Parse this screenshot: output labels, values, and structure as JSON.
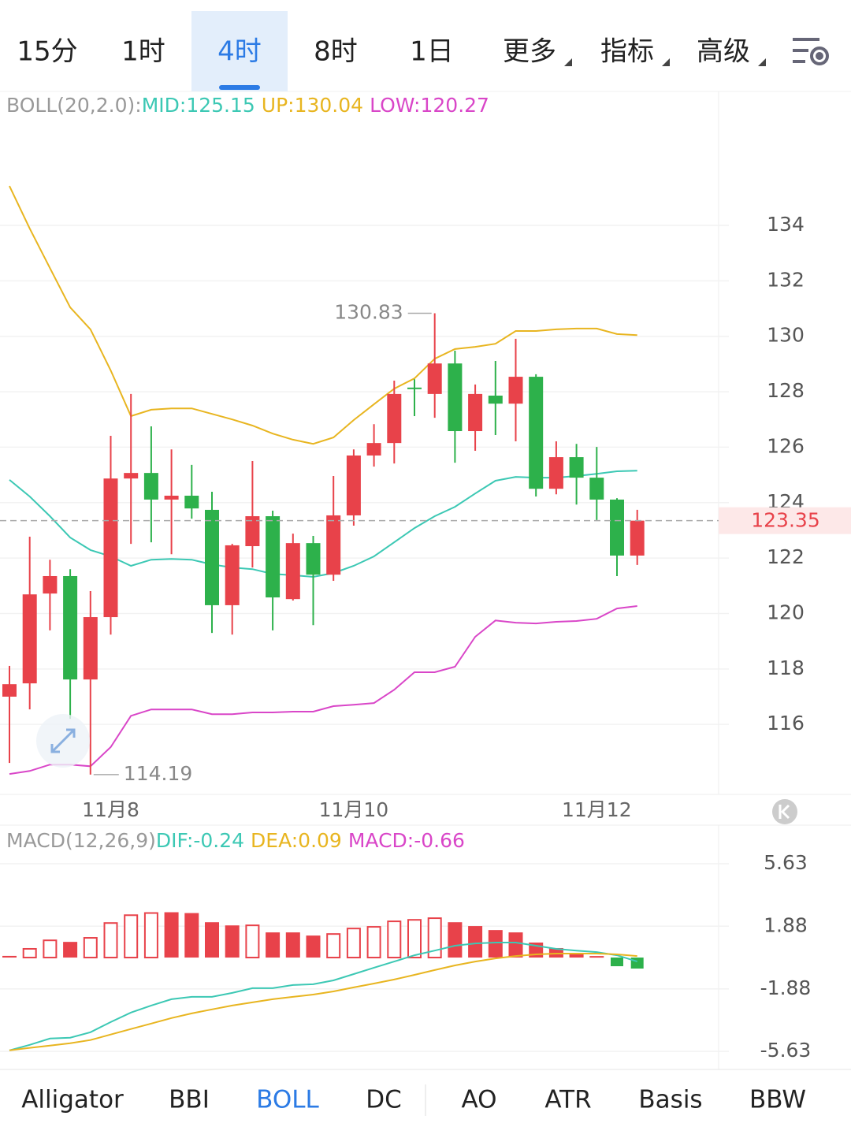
{
  "tabs": {
    "items": [
      "15分",
      "1时",
      "4时",
      "8时",
      "1日",
      "更多",
      "指标",
      "高级"
    ],
    "active": 2
  },
  "bottom_tabs": {
    "items": [
      "Alligator",
      "BBI",
      "BOLL",
      "DC",
      "AO",
      "ATR",
      "Basis",
      "BBW"
    ],
    "active": 2
  },
  "chart_data": [
    {
      "type": "candlestick",
      "legend": [
        {
          "text": "BOLL(20,2.0):",
          "color": "#999999"
        },
        {
          "text": "MID:125.15",
          "color": "#3cc8b4"
        },
        {
          "text": "UP:130.04",
          "color": "#e8b520"
        },
        {
          "text": "LOW:120.27",
          "color": "#d946c8"
        }
      ],
      "categories": [
        null,
        null,
        null,
        null,
        null,
        "11月8",
        null,
        null,
        null,
        null,
        null,
        null,
        null,
        null,
        null,
        null,
        null,
        "11月10",
        null,
        null,
        null,
        null,
        null,
        null,
        null,
        null,
        null,
        null,
        null,
        "11月12",
        null,
        null
      ],
      "open": [
        117.0,
        117.48,
        120.72,
        121.35,
        117.62,
        119.87,
        124.87,
        125.07,
        124.11,
        124.25,
        123.74,
        120.3,
        122.43,
        123.51,
        120.52,
        122.54,
        121.4,
        123.54,
        125.7,
        126.15,
        128.15,
        127.92,
        129.02,
        126.58,
        127.86,
        127.57,
        128.54,
        124.5,
        125.64,
        124.9,
        124.11,
        122.09
      ],
      "high": [
        118.11,
        122.77,
        121.94,
        121.6,
        120.81,
        126.41,
        127.92,
        126.75,
        125.92,
        125.36,
        124.39,
        122.51,
        125.5,
        123.71,
        122.88,
        122.8,
        124.96,
        125.92,
        126.83,
        128.4,
        128.45,
        130.83,
        129.48,
        128.26,
        129.11,
        129.91,
        128.63,
        126.21,
        126.12,
        126.01,
        124.16,
        123.74
      ],
      "low": [
        114.61,
        116.54,
        119.39,
        116.2,
        114.19,
        119.24,
        122.51,
        122.57,
        122.14,
        123.42,
        119.3,
        119.24,
        121.66,
        119.39,
        120.47,
        119.58,
        121.18,
        123.17,
        125.3,
        125.41,
        127.12,
        127.06,
        125.44,
        125.87,
        126.44,
        126.21,
        124.22,
        124.3,
        123.93,
        123.37,
        121.35,
        121.75
      ],
      "close": [
        117.45,
        120.69,
        121.35,
        117.62,
        119.87,
        124.87,
        125.07,
        124.11,
        124.25,
        123.79,
        120.3,
        122.46,
        123.51,
        120.58,
        122.54,
        121.4,
        123.54,
        125.7,
        126.15,
        127.92,
        128.1,
        129.02,
        126.58,
        127.92,
        127.57,
        128.54,
        124.5,
        125.64,
        124.9,
        124.11,
        122.09,
        123.35
      ],
      "up_color": "#e8424a",
      "down_color": "#2db14b",
      "overlays": [
        {
          "color": "#3cc8b4",
          "values": [
            124.82,
            124.22,
            123.51,
            122.74,
            122.29,
            122.06,
            121.72,
            121.94,
            121.97,
            121.94,
            121.77,
            121.66,
            121.6,
            121.43,
            121.38,
            121.32,
            121.46,
            121.72,
            122.06,
            122.57,
            123.08,
            123.51,
            123.85,
            124.33,
            124.79,
            124.93,
            124.9,
            124.9,
            124.96,
            125.04,
            125.13,
            125.15
          ]
        },
        {
          "color": "#e8b520",
          "values": [
            135.42,
            133.89,
            132.46,
            131.04,
            130.25,
            128.77,
            127.12,
            127.35,
            127.4,
            127.4,
            127.2,
            127.0,
            126.78,
            126.49,
            126.27,
            126.12,
            126.35,
            126.98,
            127.55,
            128.11,
            128.48,
            129.19,
            129.54,
            129.62,
            129.73,
            130.19,
            130.19,
            130.25,
            130.28,
            130.28,
            130.08,
            130.04
          ]
        },
        {
          "color": "#d946c8",
          "values": [
            114.21,
            114.32,
            114.55,
            114.55,
            114.49,
            115.18,
            116.31,
            116.54,
            116.54,
            116.54,
            116.37,
            116.37,
            116.43,
            116.43,
            116.46,
            116.46,
            116.66,
            116.71,
            116.77,
            117.25,
            117.88,
            117.88,
            118.08,
            119.16,
            119.75,
            119.67,
            119.64,
            119.7,
            119.73,
            119.81,
            120.18,
            120.27
          ]
        }
      ],
      "max_label": 130.83,
      "min_label": 114.19,
      "last_price": 123.35,
      "ylim": [
        113.56,
        138.72
      ],
      "yticks": [
        116,
        118,
        120,
        122,
        124,
        126,
        128,
        130,
        132,
        134
      ],
      "grid": true
    },
    {
      "type": "macd",
      "legend": [
        {
          "text": "MACD(12,26,9)",
          "color": "#999999"
        },
        {
          "text": "DIF:-0.24",
          "color": "#3cc8b4"
        },
        {
          "text": "DEA:0.09",
          "color": "#e8b520"
        },
        {
          "text": "MACD:-0.66",
          "color": "#d946c8"
        }
      ],
      "values": [
        0.1,
        0.57,
        1.08,
        0.94,
        1.23,
        2.12,
        2.59,
        2.72,
        2.72,
        2.67,
        2.12,
        1.93,
        1.98,
        1.51,
        1.51,
        1.32,
        1.46,
        1.79,
        1.89,
        2.22,
        2.31,
        2.41,
        2.12,
        1.89,
        1.65,
        1.51,
        0.9,
        0.57,
        0.28,
        0.09,
        -0.52,
        -0.66
      ],
      "dif": {
        "color": "#3cc8b4",
        "values": [
          -5.57,
          -5.24,
          -4.86,
          -4.81,
          -4.48,
          -3.87,
          -3.3,
          -2.88,
          -2.5,
          -2.36,
          -2.36,
          -2.12,
          -1.84,
          -1.84,
          -1.65,
          -1.6,
          -1.37,
          -0.99,
          -0.61,
          -0.24,
          0.14,
          0.42,
          0.71,
          0.85,
          0.9,
          0.9,
          0.71,
          0.52,
          0.42,
          0.33,
          0.14,
          -0.24
        ]
      },
      "dea": {
        "color": "#e8b520",
        "values": [
          -5.57,
          -5.42,
          -5.28,
          -5.14,
          -4.95,
          -4.62,
          -4.29,
          -3.96,
          -3.63,
          -3.35,
          -3.11,
          -2.88,
          -2.69,
          -2.5,
          -2.36,
          -2.22,
          -2.03,
          -1.79,
          -1.56,
          -1.32,
          -1.04,
          -0.75,
          -0.47,
          -0.24,
          -0.05,
          0.09,
          0.19,
          0.24,
          0.24,
          0.24,
          0.19,
          0.09
        ]
      },
      "up_color": "#e8424a",
      "down_color": "#2db14b",
      "ylim": [
        -6.62,
        6.15
      ],
      "yticks": [
        5.63,
        1.88,
        -1.88,
        -5.63
      ],
      "grid": true
    }
  ]
}
